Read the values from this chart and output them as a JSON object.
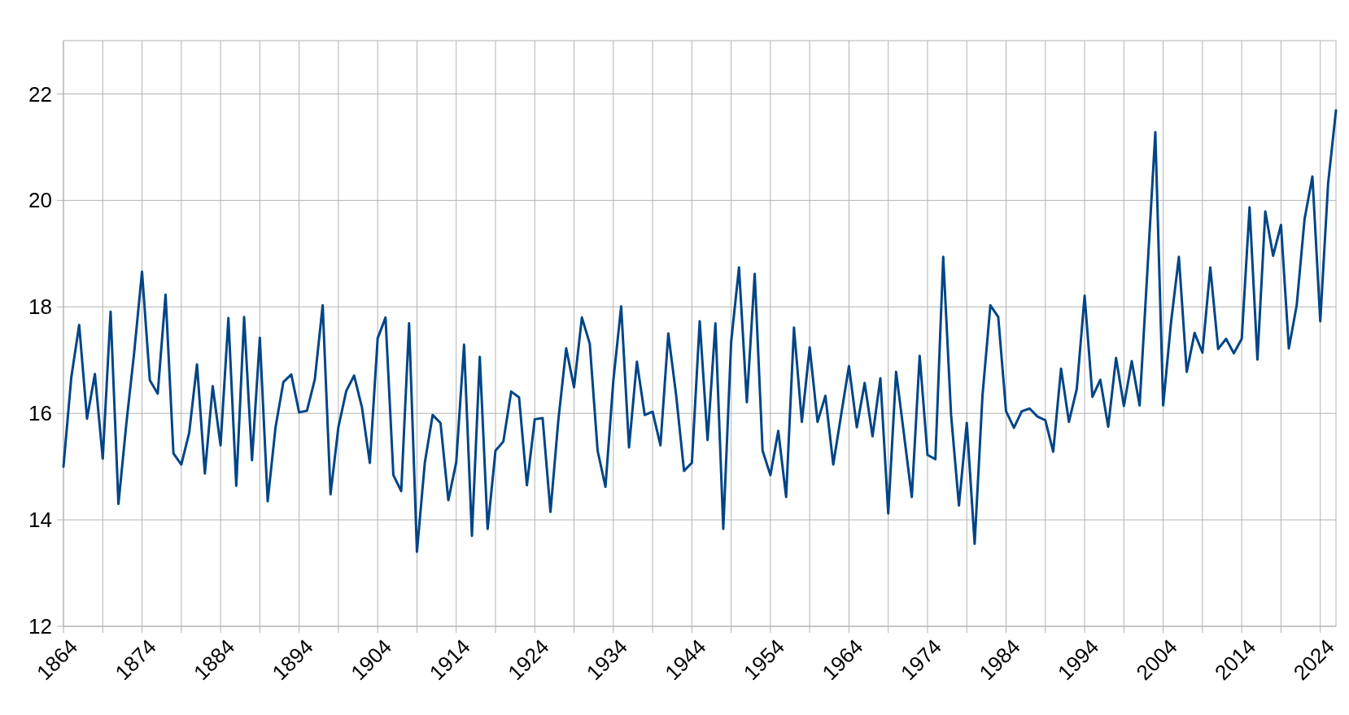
{
  "chart_data": {
    "type": "line",
    "x": [
      1864,
      1865,
      1866,
      1867,
      1868,
      1869,
      1870,
      1871,
      1872,
      1873,
      1874,
      1875,
      1876,
      1877,
      1878,
      1879,
      1880,
      1881,
      1882,
      1883,
      1884,
      1885,
      1886,
      1887,
      1888,
      1889,
      1890,
      1891,
      1892,
      1893,
      1894,
      1895,
      1896,
      1897,
      1898,
      1899,
      1900,
      1901,
      1902,
      1903,
      1904,
      1905,
      1906,
      1907,
      1908,
      1909,
      1910,
      1911,
      1912,
      1913,
      1914,
      1915,
      1916,
      1917,
      1918,
      1919,
      1920,
      1921,
      1922,
      1923,
      1924,
      1925,
      1926,
      1927,
      1928,
      1929,
      1930,
      1931,
      1932,
      1933,
      1934,
      1935,
      1936,
      1937,
      1938,
      1939,
      1940,
      1941,
      1942,
      1943,
      1944,
      1945,
      1946,
      1947,
      1948,
      1949,
      1950,
      1951,
      1952,
      1953,
      1954,
      1955,
      1956,
      1957,
      1958,
      1959,
      1960,
      1961,
      1962,
      1963,
      1964,
      1965,
      1966,
      1967,
      1968,
      1969,
      1970,
      1971,
      1972,
      1973,
      1974,
      1975,
      1976,
      1977,
      1978,
      1979,
      1980,
      1981,
      1982,
      1983,
      1984,
      1985,
      1986,
      1987,
      1988,
      1989,
      1990,
      1991,
      1992,
      1993,
      1994,
      1995,
      1996,
      1997,
      1998,
      1999,
      2000,
      2001,
      2002,
      2003,
      2004,
      2005,
      2006,
      2007,
      2008,
      2009,
      2010,
      2011,
      2012,
      2013,
      2014,
      2015,
      2016,
      2017,
      2018,
      2019,
      2020,
      2021,
      2022,
      2023,
      2024,
      2025,
      2026
    ],
    "series": [
      {
        "color": "#004586",
        "values": [
          15.0,
          16.68,
          17.66,
          15.9,
          16.74,
          15.15,
          17.91,
          14.3,
          15.8,
          17.14,
          18.66,
          16.62,
          16.37,
          18.23,
          15.25,
          15.04,
          15.63,
          16.92,
          14.87,
          16.51,
          15.4,
          17.79,
          14.64,
          17.81,
          15.12,
          17.42,
          14.35,
          15.74,
          16.59,
          16.73,
          16.02,
          16.05,
          16.64,
          18.03,
          14.48,
          15.74,
          16.42,
          16.71,
          16.11,
          15.07,
          17.41,
          17.8,
          14.84,
          14.54,
          17.69,
          13.4,
          15.07,
          15.97,
          15.82,
          14.37,
          15.08,
          17.29,
          13.7,
          17.06,
          13.83,
          15.3,
          15.47,
          16.41,
          16.3,
          14.65,
          15.89,
          15.91,
          14.15,
          15.87,
          17.22,
          16.49,
          17.8,
          17.31,
          15.3,
          14.62,
          16.61,
          18.01,
          15.36,
          16.97,
          15.97,
          16.03,
          15.4,
          17.5,
          16.34,
          14.92,
          15.07,
          17.73,
          15.5,
          17.69,
          13.83,
          17.34,
          18.74,
          16.21,
          18.62,
          15.3,
          14.84,
          15.67,
          14.43,
          17.61,
          15.84,
          17.24,
          15.84,
          16.33,
          15.04,
          15.97,
          16.89,
          15.74,
          16.57,
          15.57,
          16.66,
          14.12,
          16.78,
          15.61,
          14.43,
          17.08,
          15.22,
          15.14,
          18.94,
          15.97,
          14.27,
          15.82,
          13.55,
          16.34,
          18.03,
          17.81,
          16.04,
          15.73,
          16.04,
          16.09,
          15.94,
          15.87,
          15.28,
          16.84,
          15.84,
          16.46,
          18.21,
          16.31,
          16.63,
          15.75,
          17.04,
          16.14,
          16.98,
          16.15,
          18.7,
          21.28,
          16.15,
          17.71,
          18.94,
          16.78,
          17.51,
          17.14,
          18.74,
          17.21,
          17.4,
          17.13,
          17.4,
          19.87,
          17.01,
          19.79,
          18.96,
          19.54,
          17.22,
          18.03,
          19.65,
          20.45,
          17.73,
          20.32,
          21.69
        ]
      }
    ],
    "xlim": [
      1864,
      2026
    ],
    "xticks": [
      1864,
      {
        "value": 1869,
        "label": null
      },
      1874,
      {
        "value": 1879,
        "label": null
      },
      1884,
      {
        "value": 1889,
        "label": null
      },
      1894,
      {
        "value": 1899,
        "label": null
      },
      1904,
      {
        "value": 1909,
        "label": null
      },
      1914,
      {
        "value": 1919,
        "label": null
      },
      1924,
      {
        "value": 1929,
        "label": null
      },
      1934,
      {
        "value": 1939,
        "label": null
      },
      1944,
      {
        "value": 1949,
        "label": null
      },
      1954,
      {
        "value": 1959,
        "label": null
      },
      1964,
      {
        "value": 1969,
        "label": null
      },
      1974,
      {
        "value": 1979,
        "label": null
      },
      1984,
      {
        "value": 1989,
        "label": null
      },
      1994,
      {
        "value": 1999,
        "label": null
      },
      2004,
      {
        "value": 2009,
        "label": null
      },
      2014,
      {
        "value": 2019,
        "label": null
      },
      2024
    ],
    "ylim": [
      12,
      23
    ],
    "yticks": [
      12,
      14,
      16,
      18,
      20,
      22
    ],
    "grid": true,
    "marker": "none",
    "line_style": "solid"
  }
}
